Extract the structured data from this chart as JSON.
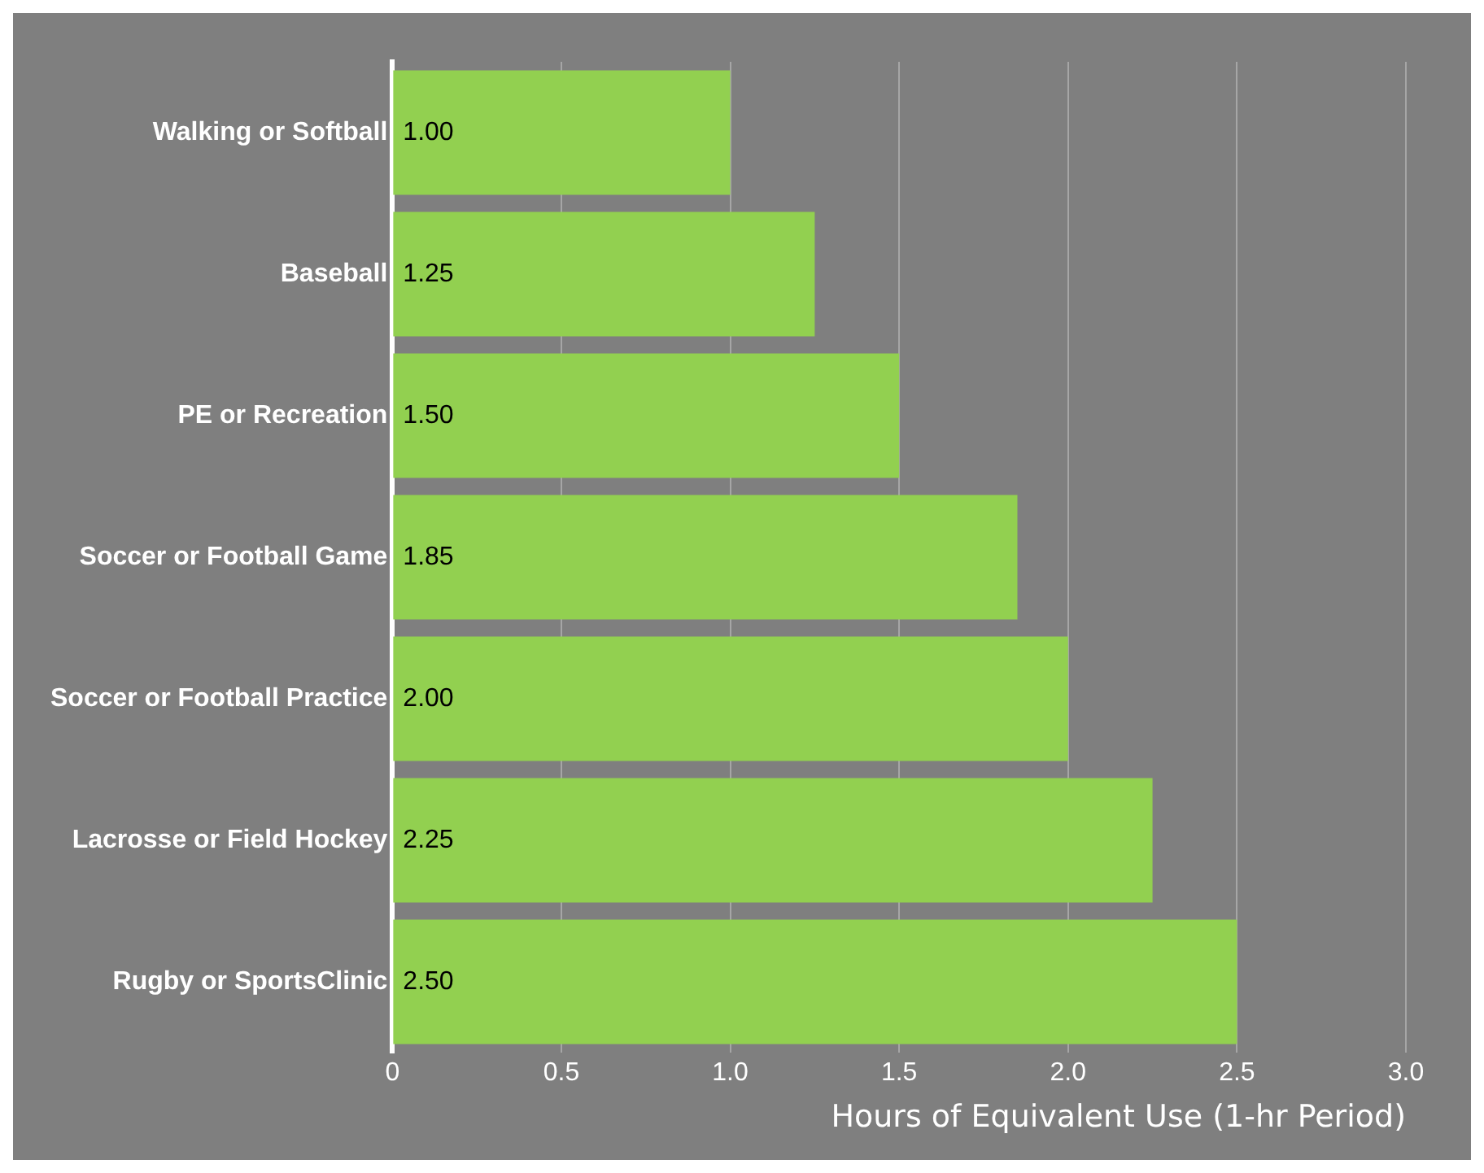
{
  "chart_data": {
    "type": "bar",
    "orientation": "horizontal",
    "categories": [
      "Walking or Softball",
      "Baseball",
      "PE or Recreation",
      "Soccer or Football Game",
      "Soccer or Football Practice",
      "Lacrosse or Field Hockey",
      "Rugby or SportsClinic"
    ],
    "values": [
      1.0,
      1.25,
      1.5,
      1.85,
      2.0,
      2.25,
      2.5
    ],
    "value_labels": [
      "1.00",
      "1.25",
      "1.50",
      "1.85",
      "2.00",
      "2.25",
      "2.50"
    ],
    "color": "#92d050",
    "xlabel": "Hours of Equivalent Use (1-hr Period)",
    "xlim": [
      0,
      3
    ],
    "xticks": [
      0,
      0.5,
      {
        "value": 1,
        "label": "1.0"
      },
      1.5,
      {
        "value": 2,
        "label": "2.0"
      },
      2.5,
      {
        "value": 3,
        "label": "3.0"
      }
    ],
    "grid": "x",
    "legend": false
  }
}
